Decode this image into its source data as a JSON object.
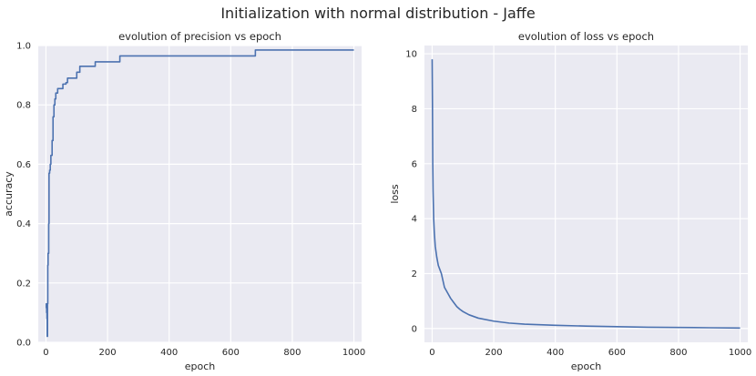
{
  "figure": {
    "title": "Initialization with normal distribution - Jaffe",
    "colors": {
      "background": "#eaeaf2",
      "grid": "#ffffff",
      "line": "#4c72b0"
    }
  },
  "chart_data": [
    {
      "type": "line",
      "title": "evolution of precision vs epoch",
      "xlabel": "epoch",
      "ylabel": "accuracy",
      "xlim": [
        -25,
        1025
      ],
      "ylim": [
        0.0,
        1.0
      ],
      "xticks": [
        0,
        200,
        400,
        600,
        800,
        1000
      ],
      "yticks": [
        0.0,
        0.2,
        0.4,
        0.6,
        0.8,
        1.0
      ],
      "xtick_labels": [
        "0",
        "200",
        "400",
        "600",
        "800",
        "1000"
      ],
      "ytick_labels": [
        "0.0",
        "0.2",
        "0.4",
        "0.6",
        "0.8",
        "1.0"
      ],
      "grid": true,
      "series": [
        {
          "step": true,
          "x": [
            0,
            1,
            2,
            3,
            4,
            5,
            6,
            7,
            8,
            9,
            10,
            12,
            14,
            16,
            18,
            20,
            23,
            26,
            29,
            32,
            35,
            38,
            41,
            45,
            50,
            55,
            60,
            65,
            70,
            75,
            80,
            90,
            100,
            110,
            160,
            240,
            680,
            1000
          ],
          "y": [
            0.115,
            0.13,
            0.1,
            0.08,
            0.02,
            0.13,
            0.26,
            0.3,
            0.3,
            0.4,
            0.57,
            0.58,
            0.6,
            0.63,
            0.63,
            0.68,
            0.76,
            0.8,
            0.82,
            0.84,
            0.84,
            0.855,
            0.855,
            0.855,
            0.855,
            0.87,
            0.87,
            0.875,
            0.89,
            0.89,
            0.89,
            0.89,
            0.91,
            0.93,
            0.945,
            0.965,
            0.985,
            0.985
          ]
        }
      ]
    },
    {
      "type": "line",
      "title": "evolution of loss vs epoch",
      "xlabel": "epoch",
      "ylabel": "loss",
      "xlim": [
        -25,
        1025
      ],
      "ylim": [
        -0.5,
        10.3
      ],
      "xticks": [
        0,
        200,
        400,
        600,
        800,
        1000
      ],
      "yticks": [
        0,
        2,
        4,
        6,
        8,
        10
      ],
      "xtick_labels": [
        "0",
        "200",
        "400",
        "600",
        "800",
        "1000"
      ],
      "ytick_labels": [
        "0",
        "2",
        "4",
        "6",
        "8",
        "10"
      ],
      "grid": true,
      "series": [
        {
          "step": false,
          "x": [
            0,
            1,
            2,
            3,
            5,
            7,
            10,
            15,
            20,
            30,
            40,
            50,
            60,
            70,
            80,
            90,
            100,
            120,
            150,
            200,
            250,
            300,
            400,
            500,
            600,
            700,
            800,
            900,
            1000
          ],
          "y": [
            9.8,
            8.2,
            6.0,
            5.0,
            4.0,
            3.5,
            3.0,
            2.6,
            2.3,
            2.0,
            1.5,
            1.3,
            1.1,
            0.95,
            0.8,
            0.7,
            0.62,
            0.5,
            0.38,
            0.27,
            0.2,
            0.16,
            0.12,
            0.09,
            0.07,
            0.05,
            0.04,
            0.03,
            0.02
          ]
        }
      ]
    }
  ]
}
